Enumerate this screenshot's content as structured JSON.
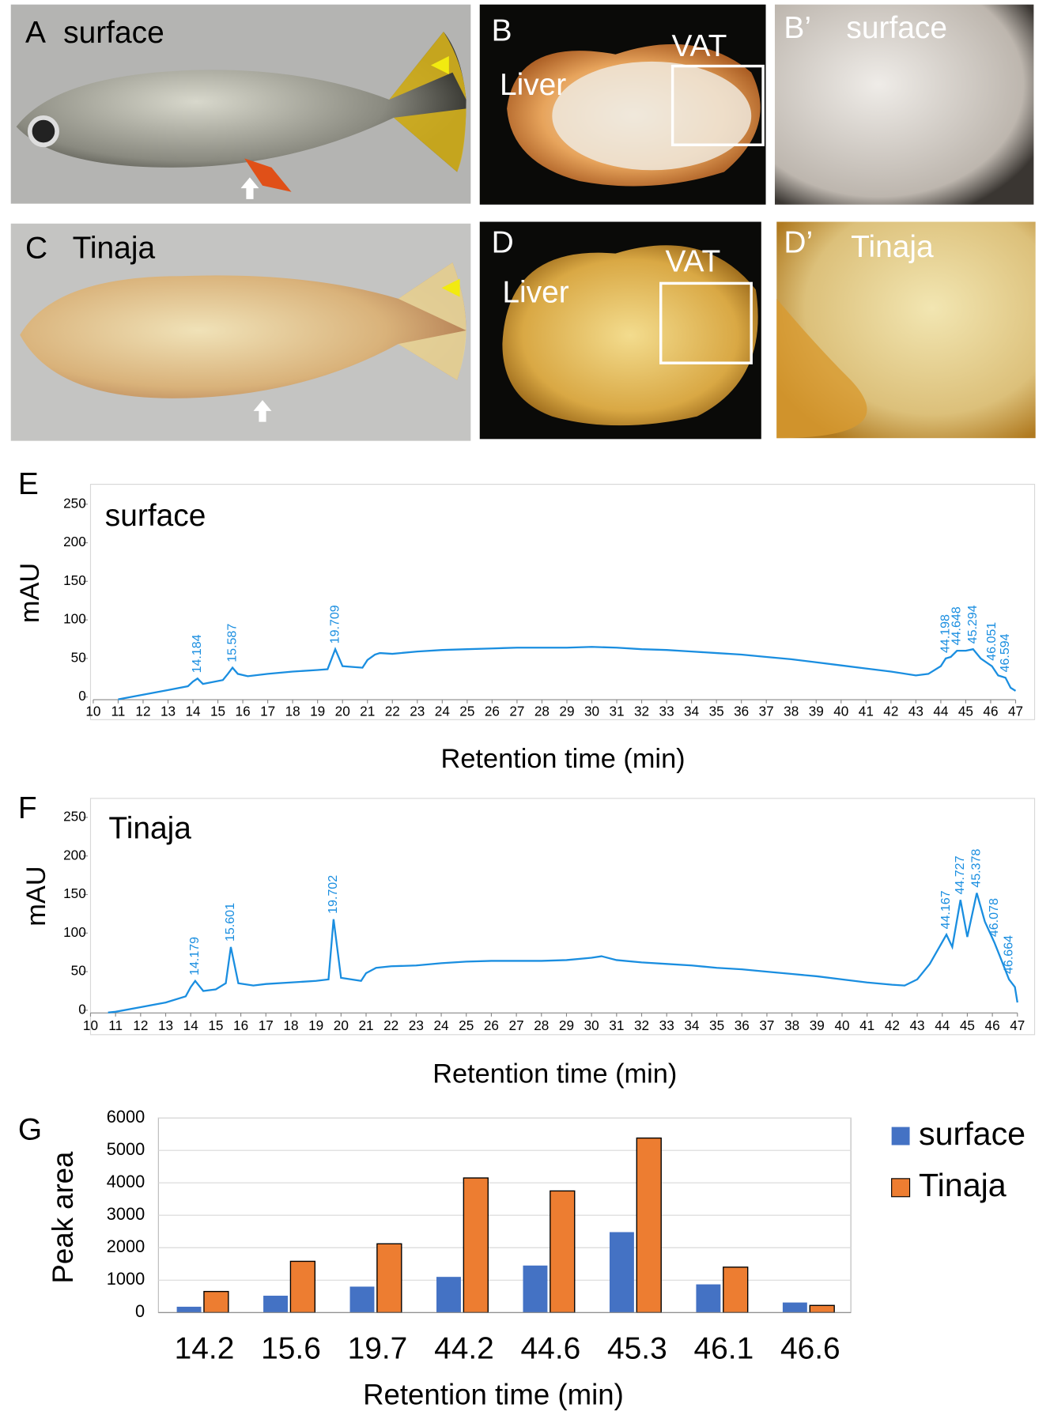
{
  "photos": [
    {
      "letter": "A",
      "text": "surface"
    },
    {
      "letter": "B",
      "liver": "Liver",
      "vat": "VAT"
    },
    {
      "letter": "B’",
      "text": "surface"
    },
    {
      "letter": "C",
      "text": "Tinaja"
    },
    {
      "letter": "D",
      "liver": "Liver",
      "vat": "VAT"
    },
    {
      "letter": "D’",
      "text": "Tinaja"
    }
  ],
  "chart_data": [
    {
      "panel": "E",
      "type": "line",
      "title": "surface",
      "y_label": "mAU",
      "x_label": "Retention time (min)",
      "color": "#1a8ee0",
      "xlim": [
        10,
        47
      ],
      "ylim": [
        0,
        250
      ],
      "xticks": [
        10,
        11,
        12,
        13,
        14,
        15,
        16,
        17,
        18,
        19,
        20,
        21,
        22,
        23,
        24,
        25,
        26,
        27,
        28,
        29,
        30,
        31,
        32,
        33,
        34,
        35,
        36,
        37,
        38,
        39,
        40,
        41,
        42,
        43,
        44,
        45,
        46,
        47
      ],
      "yticks": [
        0,
        50,
        100,
        150,
        200,
        250
      ],
      "x": [
        11,
        12,
        13,
        13.8,
        14,
        14.184,
        14.4,
        15.2,
        15.4,
        15.587,
        15.8,
        16.2,
        17,
        18,
        19,
        19.4,
        19.709,
        20,
        20.8,
        21,
        21.3,
        21.5,
        22,
        23,
        24,
        25,
        26,
        27,
        28,
        29,
        30,
        31,
        32,
        33,
        34,
        35,
        36,
        37,
        38,
        39,
        40,
        41,
        42,
        43,
        43.5,
        44,
        44.198,
        44.4,
        44.648,
        45,
        45.294,
        45.6,
        46.051,
        46.3,
        46.594,
        46.8,
        47
      ],
      "values": [
        -3,
        3,
        9,
        14,
        20,
        24,
        17,
        22,
        30,
        38,
        30,
        27,
        30,
        33,
        35,
        36,
        62,
        40,
        38,
        48,
        55,
        57,
        56,
        59,
        61,
        62,
        63,
        64,
        64,
        64,
        65,
        64,
        62,
        61,
        59,
        57,
        55,
        52,
        49,
        45,
        41,
        37,
        33,
        28,
        30,
        40,
        50,
        52,
        60,
        60,
        62,
        50,
        40,
        28,
        25,
        12,
        8
      ],
      "peaks": [
        14.184,
        15.587,
        19.709,
        44.198,
        44.648,
        45.294,
        46.051,
        46.594
      ]
    },
    {
      "panel": "F",
      "type": "line",
      "title": "Tinaja",
      "y_label": "mAU",
      "x_label": "Retention time (min)",
      "color": "#1a8ee0",
      "xlim": [
        10,
        47
      ],
      "ylim": [
        0,
        250
      ],
      "xticks": [
        10,
        11,
        12,
        13,
        14,
        15,
        16,
        17,
        18,
        19,
        20,
        21,
        22,
        23,
        24,
        25,
        26,
        27,
        28,
        29,
        30,
        31,
        32,
        33,
        34,
        35,
        36,
        37,
        38,
        39,
        40,
        41,
        42,
        43,
        44,
        45,
        46,
        47
      ],
      "yticks": [
        0,
        50,
        100,
        150,
        200,
        250
      ],
      "x": [
        10.7,
        11,
        12,
        13,
        13.8,
        14,
        14.179,
        14.5,
        15,
        15.4,
        15.601,
        15.9,
        16.5,
        17,
        18,
        19,
        19.5,
        19.702,
        20,
        20.8,
        21,
        21.4,
        22,
        23,
        24,
        25,
        26,
        27,
        28,
        29,
        30,
        30.4,
        31,
        32,
        33,
        34,
        35,
        36,
        37,
        38,
        39,
        40,
        41,
        42,
        42.5,
        43,
        43.5,
        44.167,
        44.4,
        44.727,
        45,
        45.378,
        45.7,
        46.078,
        46.3,
        46.664,
        46.9,
        47
      ],
      "values": [
        -3,
        -2,
        4,
        10,
        18,
        30,
        38,
        25,
        27,
        35,
        82,
        35,
        32,
        34,
        36,
        38,
        40,
        118,
        42,
        38,
        48,
        55,
        57,
        58,
        61,
        63,
        64,
        64,
        64,
        65,
        68,
        70,
        65,
        62,
        60,
        58,
        55,
        53,
        50,
        47,
        44,
        40,
        36,
        33,
        32,
        40,
        60,
        98,
        82,
        143,
        95,
        152,
        115,
        88,
        70,
        40,
        30,
        10
      ],
      "peaks": [
        14.179,
        15.601,
        19.702,
        44.167,
        44.727,
        45.378,
        46.078,
        46.664
      ]
    },
    {
      "panel": "G",
      "type": "bar",
      "y_label": "Peak area",
      "x_label": "Retention time (min)",
      "categories": [
        "14.2",
        "15.6",
        "19.7",
        "44.2",
        "44.6",
        "45.3",
        "46.1",
        "46.6"
      ],
      "ylim": [
        0,
        6000
      ],
      "yticks": [
        0,
        1000,
        2000,
        3000,
        4000,
        5000,
        6000
      ],
      "legend": "right",
      "series": [
        {
          "name": "surface",
          "color": "#4472c4",
          "values": [
            180,
            520,
            800,
            1100,
            1450,
            2480,
            870,
            310
          ]
        },
        {
          "name": "Tinaja",
          "color": "#ed7d31",
          "values": [
            650,
            1580,
            2120,
            4150,
            3750,
            5380,
            1400,
            220
          ]
        }
      ]
    }
  ]
}
